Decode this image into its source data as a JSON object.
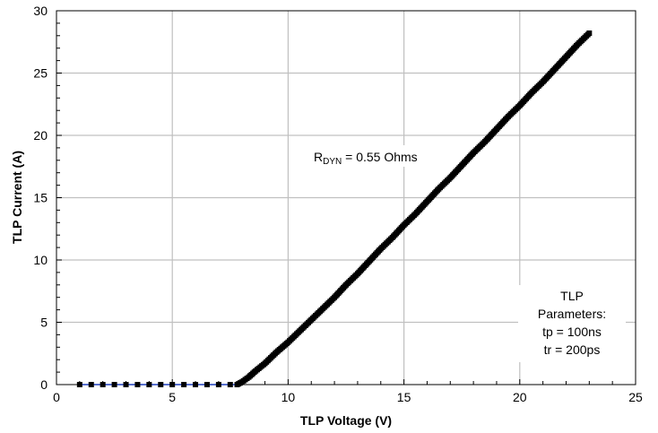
{
  "chart_data": {
    "type": "scatter",
    "title": "",
    "xlabel": "TLP Voltage (V)",
    "ylabel": "TLP Current (A)",
    "xlim": [
      0,
      25
    ],
    "ylim": [
      0,
      30
    ],
    "xticks": [
      "0",
      "5",
      "10",
      "15",
      "20",
      "25"
    ],
    "yticks": [
      "0",
      "5",
      "10",
      "15",
      "20",
      "25",
      "30"
    ],
    "grid": true,
    "legend": "none",
    "series": [
      {
        "color": "#000000",
        "marker": "square",
        "x": [
          1.0,
          1.5,
          2.0,
          2.5,
          3.0,
          3.5,
          4.0,
          4.5,
          5.0,
          5.5,
          6.0,
          6.5,
          7.0,
          7.5,
          7.8,
          8.0,
          8.3,
          8.6,
          9.0,
          9.5,
          10.0,
          10.5,
          11.0,
          11.5,
          12.0,
          12.5,
          13.0,
          13.5,
          14.0,
          14.5,
          15.0,
          15.5,
          16.0,
          16.5,
          17.0,
          17.5,
          18.0,
          18.5,
          19.0,
          19.5,
          20.0,
          20.5,
          21.0,
          21.5,
          22.0,
          22.5,
          23.0
        ],
        "y": [
          0.0,
          0.0,
          0.0,
          0.0,
          0.0,
          0.0,
          0.0,
          0.0,
          0.0,
          0.0,
          0.0,
          0.0,
          0.0,
          0.0,
          0.0,
          0.2,
          0.6,
          1.1,
          1.7,
          2.6,
          3.4,
          4.3,
          5.2,
          6.1,
          7.0,
          8.0,
          8.9,
          9.9,
          10.9,
          11.8,
          12.8,
          13.7,
          14.7,
          15.7,
          16.6,
          17.6,
          18.6,
          19.5,
          20.5,
          21.5,
          22.4,
          23.4,
          24.3,
          25.3,
          26.3,
          27.3,
          28.2
        ]
      }
    ],
    "annotations": {
      "rdyn_prefix": "R",
      "rdyn_sub": "DYN",
      "rdyn_value": " = 0.55 Ohms",
      "params": [
        "TLP",
        "Parameters:",
        "tp = 100ns",
        "tr = 200ps"
      ]
    }
  }
}
